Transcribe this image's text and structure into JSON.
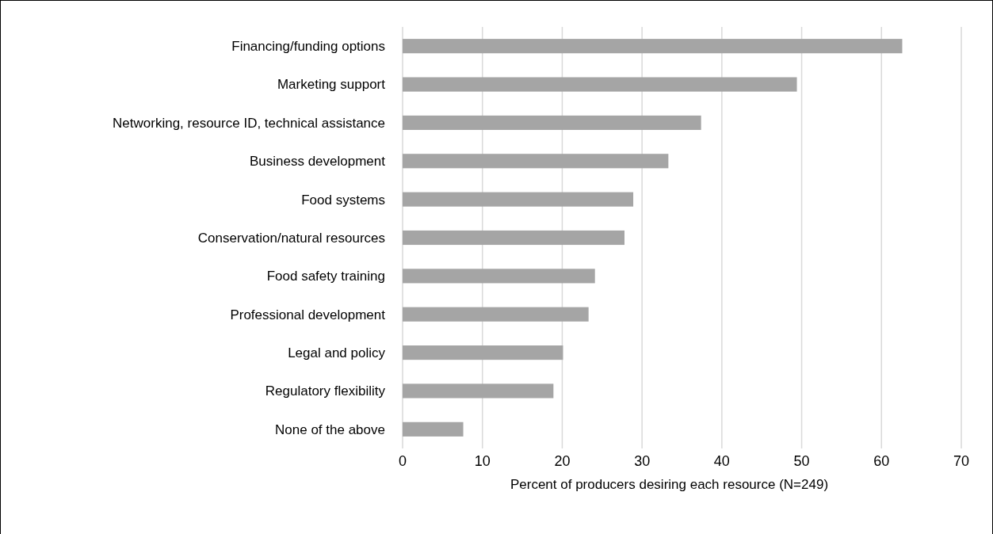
{
  "chart_data": {
    "type": "bar",
    "orientation": "horizontal",
    "xlabel": "Percent of producers desiring each resource (N=249)",
    "categories": [
      "Financing/funding options",
      "Marketing support",
      "Networking, resource ID, technical assistance",
      "Business development",
      "Food systems",
      "Conservation/natural resources",
      "Food safety training",
      "Professional development",
      "Legal and policy",
      "Regulatory flexibility",
      "None of the above"
    ],
    "values": [
      62.6,
      49.4,
      37.4,
      33.3,
      28.9,
      27.8,
      24.1,
      23.3,
      20.1,
      18.9,
      7.6
    ],
    "color": "#a5a5a5",
    "xlim": [
      0,
      70
    ],
    "xticks": [
      0,
      10,
      20,
      30,
      40,
      50,
      60,
      70
    ],
    "grid": "x"
  }
}
